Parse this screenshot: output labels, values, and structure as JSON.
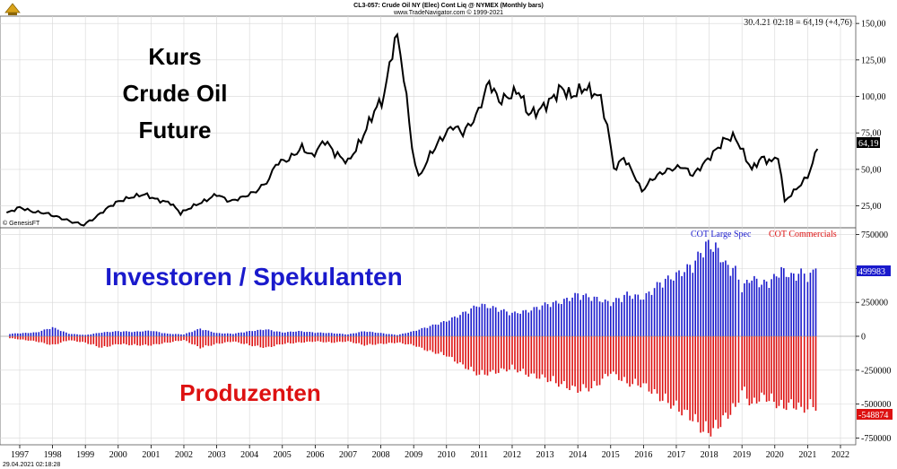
{
  "header": {
    "title": "CL3-057:  Crude Oil NY (Elec) Cont Liq @ NYMEX  (Monthly bars)",
    "copyright": "www.TradeNavigator.com © 1999-2021"
  },
  "readout": "30.4.21 02:18 = 64,19 (+4,76)",
  "source_label": "© GenesisFT",
  "footer_timestamp": "29.04.2021 02:18:28",
  "overlay": {
    "price_title": [
      "Kurs",
      "Crude Oil",
      "Future"
    ],
    "investors": "Investoren / Spekulanten",
    "producers": "Produzenten"
  },
  "colors": {
    "price": "#000000",
    "large_spec": "#1a1acc",
    "commercials": "#dd1111",
    "grid": "#d7d7d7"
  },
  "chart_data": [
    {
      "type": "line",
      "name": "Crude Oil NY (Elec) Cont Liq",
      "ylim": [
        10,
        155
      ],
      "yticks": [
        25,
        50,
        75,
        100,
        125,
        150
      ],
      "ytick_labels": [
        "25,00",
        "50,00",
        "75,00",
        "100,00",
        "125,00",
        "150,00"
      ],
      "last_value_label": "64,19",
      "x": [
        1996.6,
        1997.0,
        1997.4,
        1997.8,
        1998.2,
        1998.6,
        1998.95,
        1999.3,
        1999.7,
        2000.0,
        2000.4,
        2000.8,
        2001.2,
        2001.6,
        2001.9,
        2002.3,
        2002.7,
        2003.0,
        2003.4,
        2003.8,
        2004.2,
        2004.6,
        2004.8,
        2005.2,
        2005.6,
        2005.9,
        2006.3,
        2006.6,
        2007.0,
        2007.4,
        2007.8,
        2008.1,
        2008.35,
        2008.5,
        2008.7,
        2008.95,
        2009.15,
        2009.5,
        2009.8,
        2010.2,
        2010.5,
        2010.9,
        2011.3,
        2011.6,
        2011.9,
        2012.2,
        2012.5,
        2012.8,
        2013.2,
        2013.5,
        2013.8,
        2014.2,
        2014.5,
        2014.7,
        2014.9,
        2015.1,
        2015.4,
        2015.7,
        2015.95,
        2016.2,
        2016.5,
        2016.8,
        2017.2,
        2017.5,
        2017.8,
        2018.2,
        2018.5,
        2018.8,
        2018.95,
        2019.3,
        2019.6,
        2019.9,
        2020.1,
        2020.3,
        2020.5,
        2020.8,
        2021.0,
        2021.3
      ],
      "y": [
        20,
        24,
        21,
        20,
        17,
        14,
        12,
        17,
        24,
        28,
        31,
        33,
        29,
        27,
        20,
        25,
        29,
        33,
        28,
        31,
        35,
        43,
        54,
        57,
        65,
        59,
        70,
        61,
        55,
        70,
        90,
        100,
        132,
        141,
        115,
        65,
        44,
        60,
        70,
        80,
        75,
        86,
        110,
        97,
        100,
        104,
        88,
        90,
        98,
        106,
        100,
        106,
        102,
        98,
        80,
        50,
        58,
        47,
        35,
        42,
        47,
        50,
        52,
        46,
        53,
        63,
        71,
        72,
        65,
        50,
        58,
        55,
        60,
        28,
        33,
        40,
        45,
        64
      ],
      "x_ticks": [
        1997,
        1998,
        1999,
        2000,
        2001,
        2002,
        2003,
        2004,
        2005,
        2006,
        2007,
        2008,
        2009,
        2010,
        2011,
        2012,
        2013,
        2014,
        2015,
        2016,
        2017,
        2018,
        2019,
        2020,
        2021,
        2022
      ],
      "x_tick_labels": [
        "1997",
        "1998",
        "1999",
        "2000",
        "2001",
        "2002",
        "2003",
        "2004",
        "2005",
        "2006",
        "2007",
        "2008",
        "2009",
        "2010",
        "2011",
        "2012",
        "2013",
        "2014",
        "2015",
        "2016",
        "2017",
        "2018",
        "2019",
        "2020",
        "2021",
        "2022"
      ]
    },
    {
      "type": "bar",
      "legend": [
        "COT Large Spec",
        "COT Commercials"
      ],
      "ylim": [
        -800000,
        800000
      ],
      "yticks": [
        -750000,
        -500000,
        -250000,
        0,
        250000,
        500000,
        750000
      ],
      "ytick_labels": [
        "-750000",
        "-500000",
        "-250000",
        "0",
        "250000",
        "500000",
        "750000"
      ],
      "last_value_labels": [
        "499983",
        "-548874"
      ],
      "series": [
        {
          "name": "COT Large Spec",
          "x": [
            1996.7,
            1997.5,
            1998.0,
            1998.5,
            1999.0,
            1999.5,
            2000.0,
            2000.5,
            2001.0,
            2001.5,
            2002.0,
            2002.5,
            2003.0,
            2003.5,
            2004.0,
            2004.5,
            2005.0,
            2005.5,
            2006.0,
            2006.5,
            2007.0,
            2007.5,
            2008.0,
            2008.5,
            2009.0,
            2009.5,
            2010.0,
            2010.5,
            2011.0,
            2011.5,
            2012.0,
            2012.5,
            2013.0,
            2013.5,
            2014.0,
            2014.5,
            2015.0,
            2015.5,
            2016.0,
            2016.5,
            2017.0,
            2017.5,
            2017.9,
            2018.2,
            2018.5,
            2018.8,
            2019.0,
            2019.3,
            2019.6,
            2019.9,
            2020.2,
            2020.5,
            2020.8,
            2021.0,
            2021.25
          ],
          "values": [
            20000,
            30000,
            70000,
            20000,
            10000,
            30000,
            40000,
            35000,
            45000,
            20000,
            15000,
            60000,
            25000,
            20000,
            40000,
            55000,
            30000,
            40000,
            30000,
            25000,
            15000,
            40000,
            25000,
            10000,
            40000,
            80000,
            120000,
            180000,
            250000,
            220000,
            180000,
            200000,
            250000,
            270000,
            330000,
            300000,
            260000,
            330000,
            300000,
            420000,
            480000,
            560000,
            720000,
            700000,
            560000,
            520000,
            380000,
            460000,
            410000,
            440000,
            520000,
            470000,
            500000,
            480000,
            499983
          ]
        },
        {
          "name": "COT Commercials",
          "x": [
            1996.7,
            1997.5,
            1998.0,
            1998.5,
            1999.0,
            1999.5,
            2000.0,
            2000.5,
            2001.0,
            2001.5,
            2002.0,
            2002.5,
            2003.0,
            2003.5,
            2004.0,
            2004.5,
            2005.0,
            2005.5,
            2006.0,
            2006.5,
            2007.0,
            2007.5,
            2008.0,
            2008.5,
            2009.0,
            2009.5,
            2010.0,
            2010.5,
            2011.0,
            2011.5,
            2012.0,
            2012.5,
            2013.0,
            2013.5,
            2014.0,
            2014.5,
            2015.0,
            2015.5,
            2016.0,
            2016.5,
            2017.0,
            2017.5,
            2017.9,
            2018.2,
            2018.5,
            2018.8,
            2019.0,
            2019.3,
            2019.6,
            2019.9,
            2020.2,
            2020.5,
            2020.8,
            2021.0,
            2021.25
          ],
          "values": [
            -15000,
            -40000,
            -70000,
            -30000,
            -50000,
            -90000,
            -60000,
            -70000,
            -70000,
            -50000,
            -30000,
            -90000,
            -60000,
            -40000,
            -70000,
            -90000,
            -60000,
            -50000,
            -40000,
            -50000,
            -40000,
            -70000,
            -60000,
            -50000,
            -70000,
            -120000,
            -150000,
            -230000,
            -300000,
            -280000,
            -250000,
            -300000,
            -330000,
            -380000,
            -420000,
            -400000,
            -280000,
            -370000,
            -380000,
            -480000,
            -560000,
            -640000,
            -760000,
            -720000,
            -630000,
            -560000,
            -420000,
            -540000,
            -470000,
            -500000,
            -560000,
            -530000,
            -570000,
            -560000,
            -548874
          ]
        }
      ]
    }
  ]
}
